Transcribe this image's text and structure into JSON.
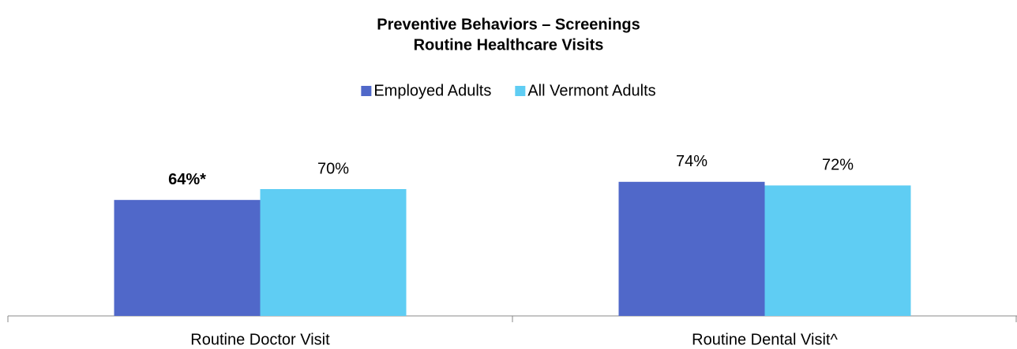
{
  "chart_data": {
    "type": "bar",
    "title": "Preventive Behaviors – Screenings",
    "subtitle": "Routine Healthcare Visits",
    "categories": [
      "Routine Doctor Visit",
      "Routine Dental Visit^"
    ],
    "series": [
      {
        "name": "Employed Adults",
        "color": "#5068c9",
        "values": [
          64,
          74
        ],
        "value_labels": [
          "64%*",
          "74%"
        ],
        "label_colors": [
          "#c00000",
          "#000000"
        ]
      },
      {
        "name": "All Vermont Adults",
        "color": "#5fcdf3",
        "values": [
          70,
          72
        ],
        "value_labels": [
          "70%",
          "72%"
        ],
        "label_colors": [
          "#000000",
          "#000000"
        ]
      }
    ],
    "legend": "top"
  }
}
